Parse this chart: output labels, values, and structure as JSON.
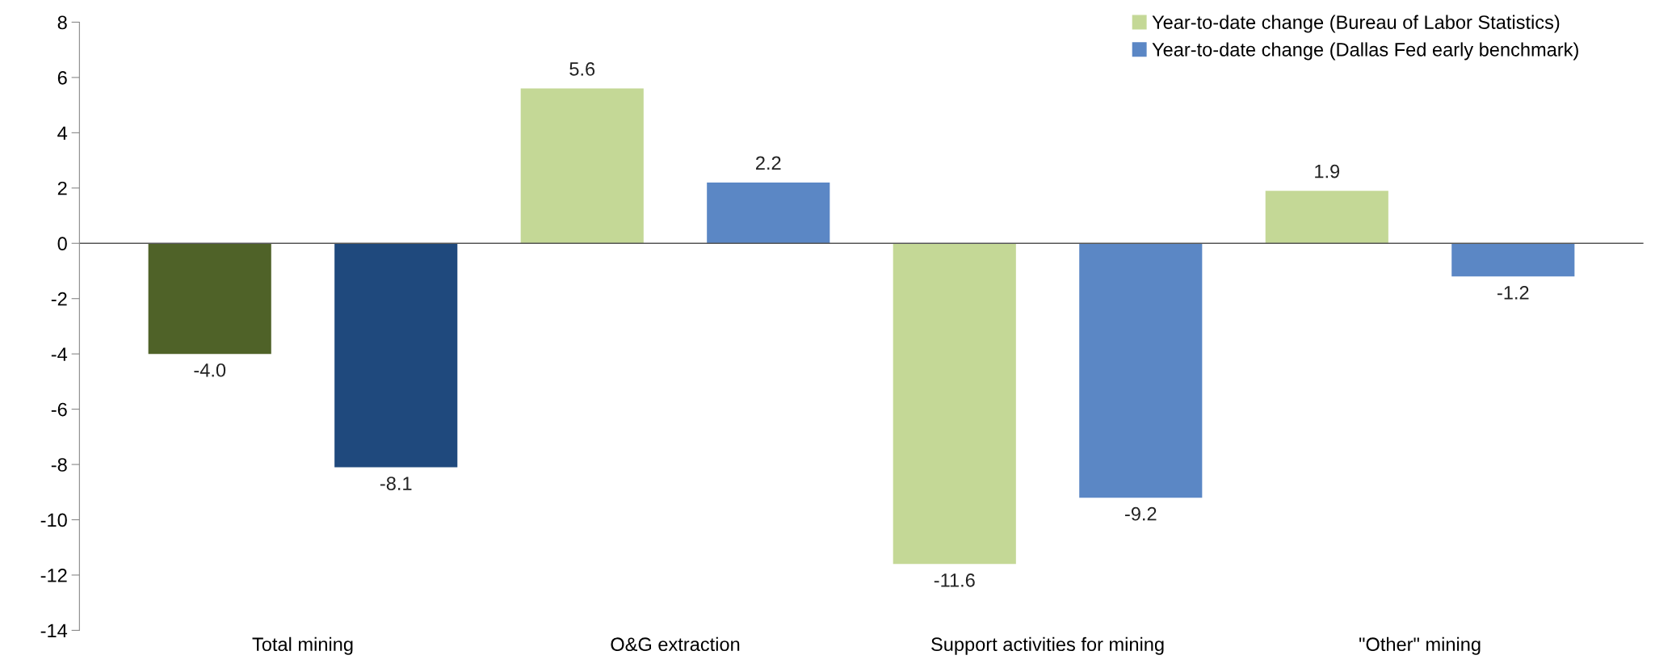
{
  "chart_data": {
    "type": "bar",
    "categories": [
      "Total mining",
      "O&G extraction",
      "Support activities for mining",
      "\"Other\" mining"
    ],
    "series": [
      {
        "name": "Year-to-date change (Bureau of Labor Statistics)",
        "color": "#c4d896",
        "colors": [
          "#4f6228",
          "#c4d896",
          "#c4d896",
          "#c4d896"
        ],
        "values": [
          -4.0,
          5.6,
          -11.6,
          1.9
        ],
        "value_labels": [
          "-4.0",
          "5.6",
          "-11.6",
          "1.9"
        ]
      },
      {
        "name": "Year-to-date change (Dallas Fed early benchmark)",
        "color": "#5b87c5",
        "colors": [
          "#1f497d",
          "#5b87c5",
          "#5b87c5",
          "#5b87c5"
        ],
        "values": [
          -8.1,
          2.2,
          -9.2,
          -1.2
        ],
        "value_labels": [
          "-8.1",
          "2.2",
          "-9.2",
          "-1.2"
        ]
      }
    ],
    "ylim": [
      -14,
      8
    ],
    "yticks": [
      -14,
      -12,
      -10,
      -8,
      -6,
      -4,
      -2,
      0,
      2,
      4,
      6,
      8
    ],
    "ref_lines": [
      {
        "axis": "y",
        "value": 0,
        "color": "#555555"
      }
    ],
    "grid": false,
    "legend": "top right"
  }
}
